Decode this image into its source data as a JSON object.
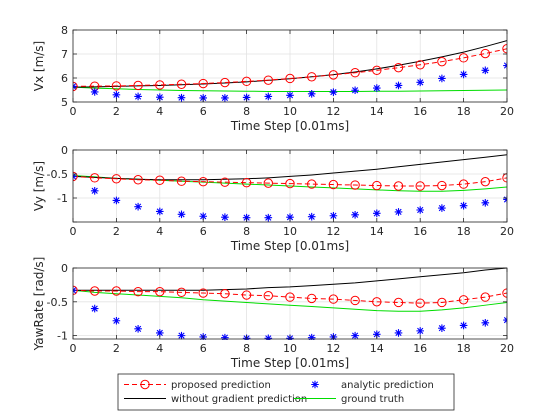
{
  "chart_data": [
    {
      "type": "line",
      "title": "",
      "xlabel": "Time Step [0.01ms]",
      "ylabel": "Vx [m/s]",
      "xlim": [
        0,
        20
      ],
      "ylim": [
        5,
        8
      ],
      "xticks": [
        0,
        2,
        4,
        6,
        8,
        10,
        12,
        14,
        16,
        18,
        20
      ],
      "yticks": [
        5,
        6,
        7,
        8
      ],
      "grid": true,
      "x": [
        0,
        1,
        2,
        3,
        4,
        5,
        6,
        7,
        8,
        9,
        10,
        11,
        12,
        13,
        14,
        15,
        16,
        17,
        18,
        19,
        20
      ],
      "series": [
        {
          "name": "proposed prediction",
          "style": "line-circle",
          "color": "#ff0000",
          "values": [
            5.65,
            5.66,
            5.67,
            5.69,
            5.71,
            5.74,
            5.77,
            5.81,
            5.86,
            5.91,
            5.98,
            6.05,
            6.13,
            6.22,
            6.32,
            6.43,
            6.55,
            6.68,
            6.84,
            7.02,
            7.22
          ]
        },
        {
          "name": "analytic prediction",
          "style": "star",
          "color": "#0000ff",
          "values": [
            5.65,
            5.42,
            5.3,
            5.23,
            5.2,
            5.18,
            5.17,
            5.17,
            5.19,
            5.23,
            5.28,
            5.34,
            5.41,
            5.49,
            5.58,
            5.69,
            5.82,
            5.98,
            6.15,
            6.32,
            6.52
          ]
        },
        {
          "name": "without gradient prediction",
          "style": "line",
          "color": "#000000",
          "values": [
            5.62,
            5.63,
            5.65,
            5.67,
            5.69,
            5.72,
            5.75,
            5.79,
            5.84,
            5.9,
            5.97,
            6.05,
            6.14,
            6.25,
            6.38,
            6.53,
            6.7,
            6.88,
            7.08,
            7.31,
            7.56
          ]
        },
        {
          "name": "ground truth",
          "style": "line",
          "color": "#00dd00",
          "values": [
            5.62,
            5.58,
            5.55,
            5.52,
            5.5,
            5.48,
            5.47,
            5.46,
            5.45,
            5.44,
            5.44,
            5.44,
            5.44,
            5.44,
            5.45,
            5.45,
            5.46,
            5.47,
            5.48,
            5.49,
            5.5
          ]
        }
      ]
    },
    {
      "type": "line",
      "title": "",
      "xlabel": "Time Step [0.01ms]",
      "ylabel": "Vy [m/s]",
      "xlim": [
        0,
        20
      ],
      "ylim": [
        -1.5,
        0
      ],
      "xticks": [
        0,
        2,
        4,
        6,
        8,
        10,
        12,
        14,
        16,
        18,
        20
      ],
      "yticks": [
        -1.5,
        -1,
        -0.5,
        0
      ],
      "yticklabels": [
        "",
        "-1",
        "-0.5",
        "0"
      ],
      "grid": true,
      "x": [
        0,
        1,
        2,
        3,
        4,
        5,
        6,
        7,
        8,
        9,
        10,
        11,
        12,
        13,
        14,
        15,
        16,
        17,
        18,
        19,
        20
      ],
      "series": [
        {
          "name": "proposed prediction",
          "style": "line-circle",
          "color": "#ff0000",
          "values": [
            -0.55,
            -0.58,
            -0.6,
            -0.62,
            -0.63,
            -0.65,
            -0.66,
            -0.67,
            -0.68,
            -0.69,
            -0.7,
            -0.71,
            -0.72,
            -0.73,
            -0.74,
            -0.75,
            -0.75,
            -0.74,
            -0.71,
            -0.66,
            -0.58
          ]
        },
        {
          "name": "analytic prediction",
          "style": "star",
          "color": "#0000ff",
          "values": [
            -0.55,
            -0.85,
            -1.05,
            -1.18,
            -1.28,
            -1.34,
            -1.38,
            -1.4,
            -1.41,
            -1.41,
            -1.4,
            -1.39,
            -1.37,
            -1.35,
            -1.32,
            -1.29,
            -1.25,
            -1.21,
            -1.16,
            -1.1,
            -1.03
          ]
        },
        {
          "name": "without gradient prediction",
          "style": "line",
          "color": "#000000",
          "values": [
            -0.55,
            -0.57,
            -0.59,
            -0.61,
            -0.62,
            -0.62,
            -0.62,
            -0.61,
            -0.6,
            -0.58,
            -0.55,
            -0.52,
            -0.48,
            -0.44,
            -0.4,
            -0.35,
            -0.3,
            -0.25,
            -0.2,
            -0.15,
            -0.1
          ]
        },
        {
          "name": "ground truth",
          "style": "line",
          "color": "#00dd00",
          "values": [
            -0.53,
            -0.56,
            -0.59,
            -0.61,
            -0.63,
            -0.65,
            -0.67,
            -0.69,
            -0.71,
            -0.73,
            -0.75,
            -0.77,
            -0.79,
            -0.81,
            -0.83,
            -0.85,
            -0.86,
            -0.86,
            -0.84,
            -0.81,
            -0.77
          ]
        }
      ]
    },
    {
      "type": "line",
      "title": "",
      "xlabel": "Time Step [0.01ms]",
      "ylabel": "YawRate [rad/s]",
      "xlim": [
        0,
        20
      ],
      "ylim": [
        -1.05,
        0
      ],
      "xticks": [
        0,
        2,
        4,
        6,
        8,
        10,
        12,
        14,
        16,
        18,
        20
      ],
      "yticks": [
        -1,
        -0.5,
        0
      ],
      "yticklabels": [
        "-1",
        "-0.5",
        "0"
      ],
      "grid": true,
      "x": [
        0,
        1,
        2,
        3,
        4,
        5,
        6,
        7,
        8,
        9,
        10,
        11,
        12,
        13,
        14,
        15,
        16,
        17,
        18,
        19,
        20
      ],
      "series": [
        {
          "name": "proposed prediction",
          "style": "line-circle",
          "color": "#ff0000",
          "values": [
            -0.33,
            -0.34,
            -0.34,
            -0.35,
            -0.35,
            -0.36,
            -0.37,
            -0.38,
            -0.4,
            -0.41,
            -0.43,
            -0.45,
            -0.46,
            -0.48,
            -0.5,
            -0.51,
            -0.52,
            -0.51,
            -0.47,
            -0.43,
            -0.37
          ]
        },
        {
          "name": "analytic prediction",
          "style": "star",
          "color": "#0000ff",
          "values": [
            -0.33,
            -0.6,
            -0.78,
            -0.9,
            -0.96,
            -1.0,
            -1.02,
            -1.03,
            -1.04,
            -1.04,
            -1.04,
            -1.03,
            -1.02,
            -1.0,
            -0.98,
            -0.96,
            -0.93,
            -0.89,
            -0.85,
            -0.81,
            -0.77
          ]
        },
        {
          "name": "without gradient prediction",
          "style": "line",
          "color": "#000000",
          "values": [
            -0.33,
            -0.33,
            -0.33,
            -0.33,
            -0.33,
            -0.33,
            -0.33,
            -0.32,
            -0.31,
            -0.29,
            -0.28,
            -0.26,
            -0.24,
            -0.22,
            -0.19,
            -0.16,
            -0.13,
            -0.1,
            -0.07,
            -0.03,
            0.0
          ]
        },
        {
          "name": "ground truth",
          "style": "line",
          "color": "#00dd00",
          "values": [
            -0.33,
            -0.36,
            -0.38,
            -0.4,
            -0.42,
            -0.44,
            -0.47,
            -0.49,
            -0.51,
            -0.53,
            -0.55,
            -0.57,
            -0.59,
            -0.61,
            -0.63,
            -0.64,
            -0.64,
            -0.62,
            -0.59,
            -0.55,
            -0.51
          ]
        }
      ]
    }
  ],
  "legend": {
    "placement": "bottom-center",
    "entries": [
      {
        "label": "proposed prediction",
        "style": "line-circle",
        "color": "#ff0000"
      },
      {
        "label": "analytic prediction",
        "style": "star",
        "color": "#0000ff"
      },
      {
        "label": "without gradient prediction",
        "style": "line",
        "color": "#000000"
      },
      {
        "label": "ground truth",
        "style": "line",
        "color": "#00dd00"
      }
    ]
  }
}
